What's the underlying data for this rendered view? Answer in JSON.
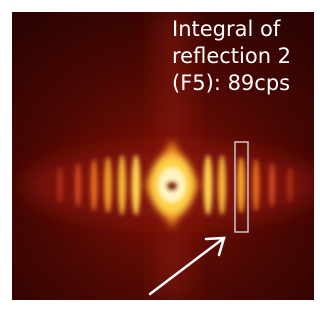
{
  "overlay_text": {
    "lines": [
      "Integral of",
      "reflection 2",
      "(F5): 89cps"
    ]
  }
}
